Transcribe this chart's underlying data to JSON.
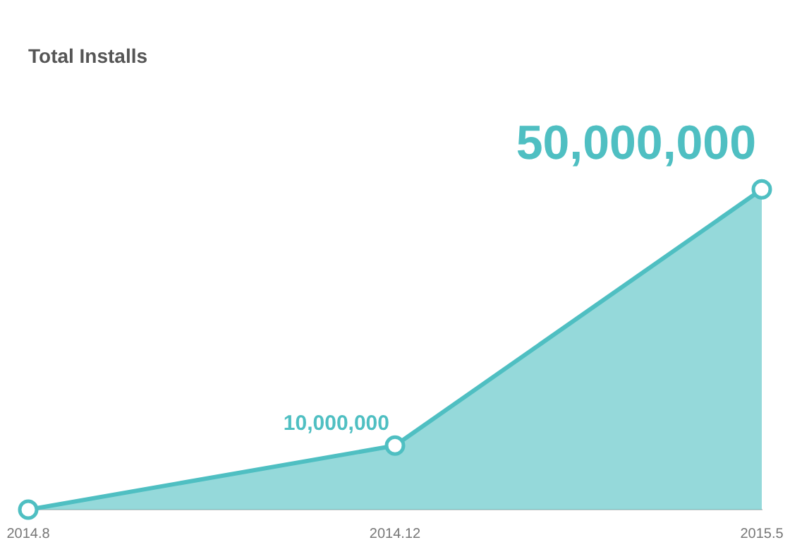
{
  "chart_data": {
    "type": "area",
    "title": "Total Installs",
    "categories": [
      "2014.8",
      "2014.12",
      "2015.5"
    ],
    "series": [
      {
        "color": "#4fbfc2",
        "values": [
          0,
          10000000,
          50000000
        ],
        "value_labels": [
          null,
          "10,000,000",
          "50,000,000"
        ]
      }
    ],
    "marker": "circle",
    "grid": false,
    "legend": false,
    "tick_labels": "x"
  }
}
